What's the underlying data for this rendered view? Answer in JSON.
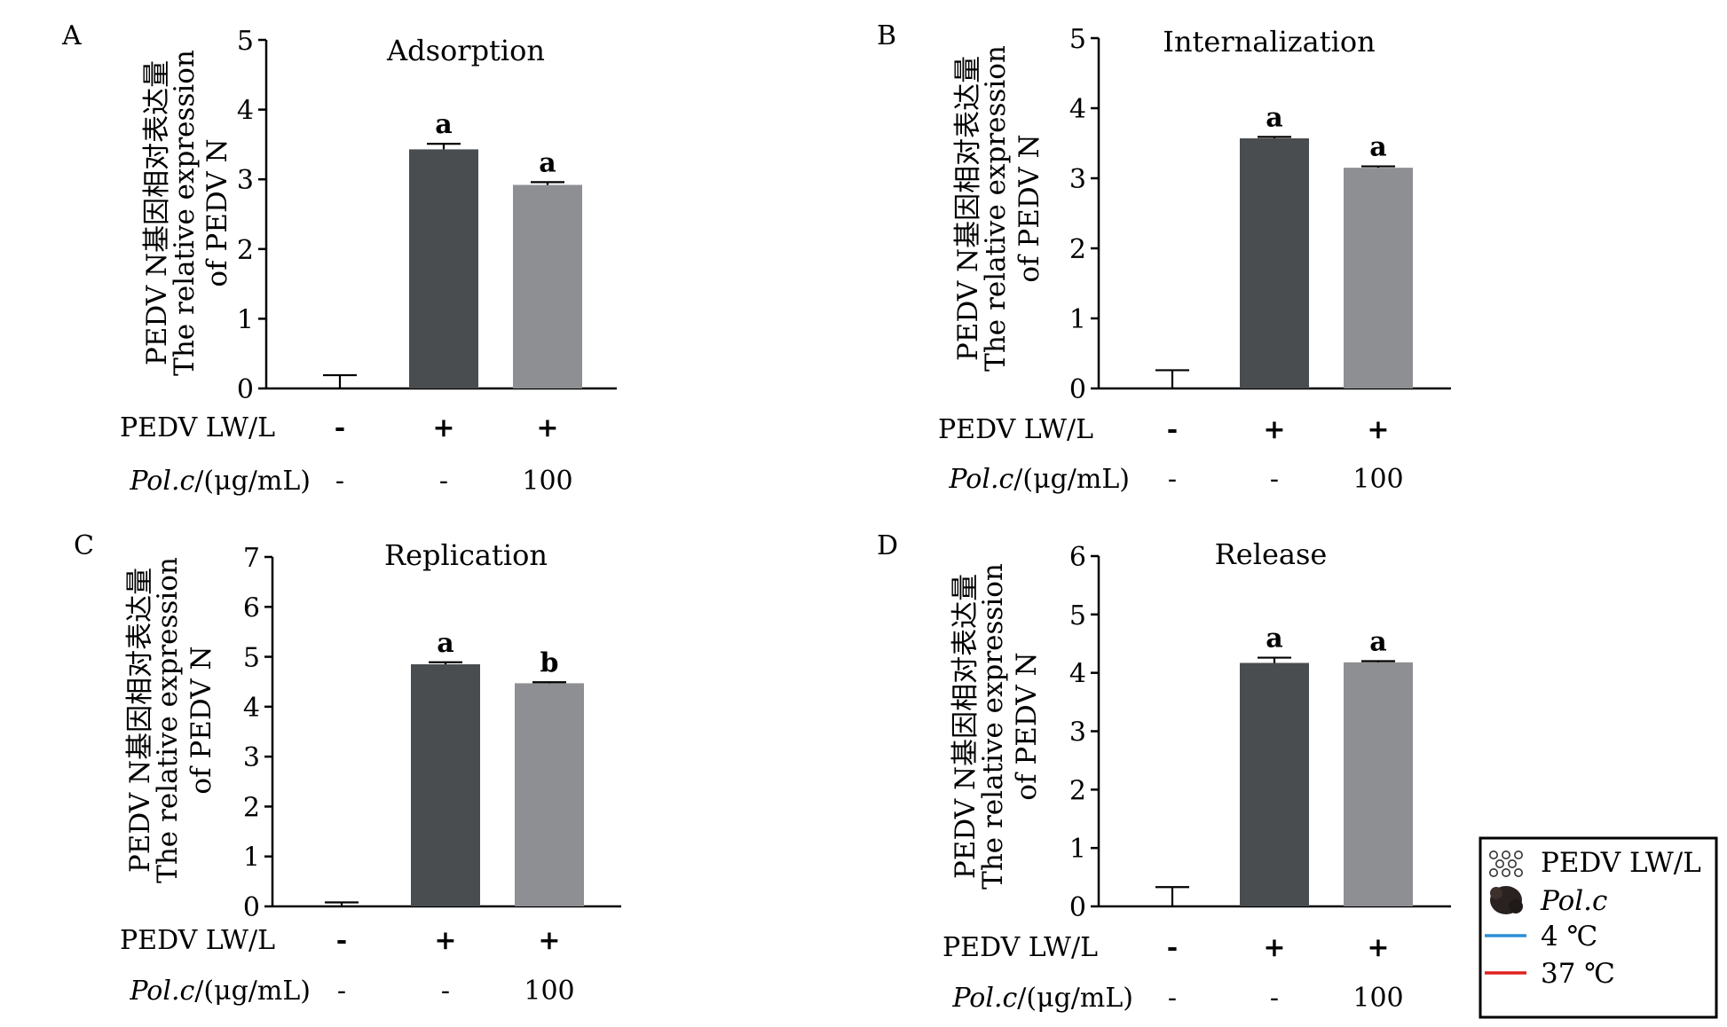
{
  "chart_data": [
    {
      "type": "bar",
      "panel": "A",
      "title": "Adsorption",
      "ylabel_cn": "PEDV N基因相对表达量",
      "ylabel_en_1": "The relative expression",
      "ylabel_en_2": "of PEDV N",
      "ylim": [
        0,
        5
      ],
      "yticks": [
        "0",
        "1",
        "2",
        "3",
        "4",
        "5"
      ],
      "values": [
        0,
        3.43,
        2.92
      ],
      "errors": [
        0.19,
        0.08,
        0.04
      ],
      "significance": [
        "",
        "a",
        "a"
      ],
      "colors": [
        "#ffffff",
        "#4a4d4f",
        "#8e8f93"
      ],
      "row1": {
        "label": "PEDV LW/L",
        "values": [
          "-",
          "+",
          "+"
        ]
      },
      "row2": {
        "label_italic": "Pol.c",
        "label_rest": "/(μg/mL)",
        "values": [
          "-",
          "-",
          "100"
        ]
      }
    },
    {
      "type": "bar",
      "panel": "B",
      "title": "Internalization",
      "ylabel_cn": "PEDV N基因相对表达量",
      "ylabel_en_1": "The relative expression",
      "ylabel_en_2": "of PEDV N",
      "ylim": [
        0,
        5
      ],
      "yticks": [
        "0",
        "1",
        "2",
        "3",
        "4",
        "5"
      ],
      "values": [
        0,
        3.57,
        3.15
      ],
      "errors": [
        0.26,
        0.02,
        0.02
      ],
      "significance": [
        "",
        "a",
        "a"
      ],
      "colors": [
        "#ffffff",
        "#4a4d4f",
        "#8e8f93"
      ],
      "row1": {
        "label": "PEDV LW/L",
        "values": [
          "-",
          "+",
          "+"
        ]
      },
      "row2": {
        "label_italic": "Pol.c",
        "label_rest": "/(μg/mL)",
        "values": [
          "-",
          "-",
          "100"
        ]
      }
    },
    {
      "type": "bar",
      "panel": "C",
      "title": "Replication",
      "ylabel_cn": "PEDV N基因相对表达量",
      "ylabel_en_1": "The relative expression",
      "ylabel_en_2": "of PEDV N",
      "ylim": [
        0,
        7
      ],
      "yticks": [
        "0",
        "1",
        "2",
        "3",
        "4",
        "5",
        "6",
        "7"
      ],
      "values": [
        0,
        4.85,
        4.47
      ],
      "errors": [
        0.08,
        0.04,
        0.02
      ],
      "significance": [
        "",
        "a",
        "b"
      ],
      "colors": [
        "#ffffff",
        "#4a4d4f",
        "#8e8f93"
      ],
      "row1": {
        "label": "PEDV LW/L",
        "values": [
          "-",
          "+",
          "+"
        ]
      },
      "row2": {
        "label_italic": "Pol.c",
        "label_rest": "/(μg/mL)",
        "values": [
          "-",
          "-",
          "100"
        ]
      }
    },
    {
      "type": "bar",
      "panel": "D",
      "title": "Release",
      "ylabel_cn": "PEDV N基因相对表达量",
      "ylabel_en_1": "The relative expression",
      "ylabel_en_2": "of PEDV N",
      "ylim": [
        0,
        6
      ],
      "yticks": [
        "0",
        "1",
        "2",
        "3",
        "4",
        "5",
        "6"
      ],
      "values": [
        0,
        4.17,
        4.18
      ],
      "errors": [
        0.33,
        0.09,
        0.02
      ],
      "significance": [
        "",
        "a",
        "a"
      ],
      "colors": [
        "#ffffff",
        "#4a4d4f",
        "#8e8f93"
      ],
      "row1": {
        "label": "PEDV LW/L",
        "values": [
          "-",
          "+",
          "+"
        ]
      },
      "row2": {
        "label_italic": "Pol.c",
        "label_rest": "/(μg/mL)",
        "values": [
          "-",
          "-",
          "100"
        ]
      }
    }
  ],
  "legend": [
    {
      "icon": "virus-particles-icon",
      "label": "PEDV LW/L",
      "italic": false
    },
    {
      "icon": "polysaccharide-blob-icon",
      "label": "Pol.c",
      "italic": true
    },
    {
      "icon": "line",
      "color": "#2b8fd6",
      "label": "4 ℃",
      "italic": false
    },
    {
      "icon": "line",
      "color": "#e02020",
      "label": "37 ℃",
      "italic": false
    }
  ]
}
